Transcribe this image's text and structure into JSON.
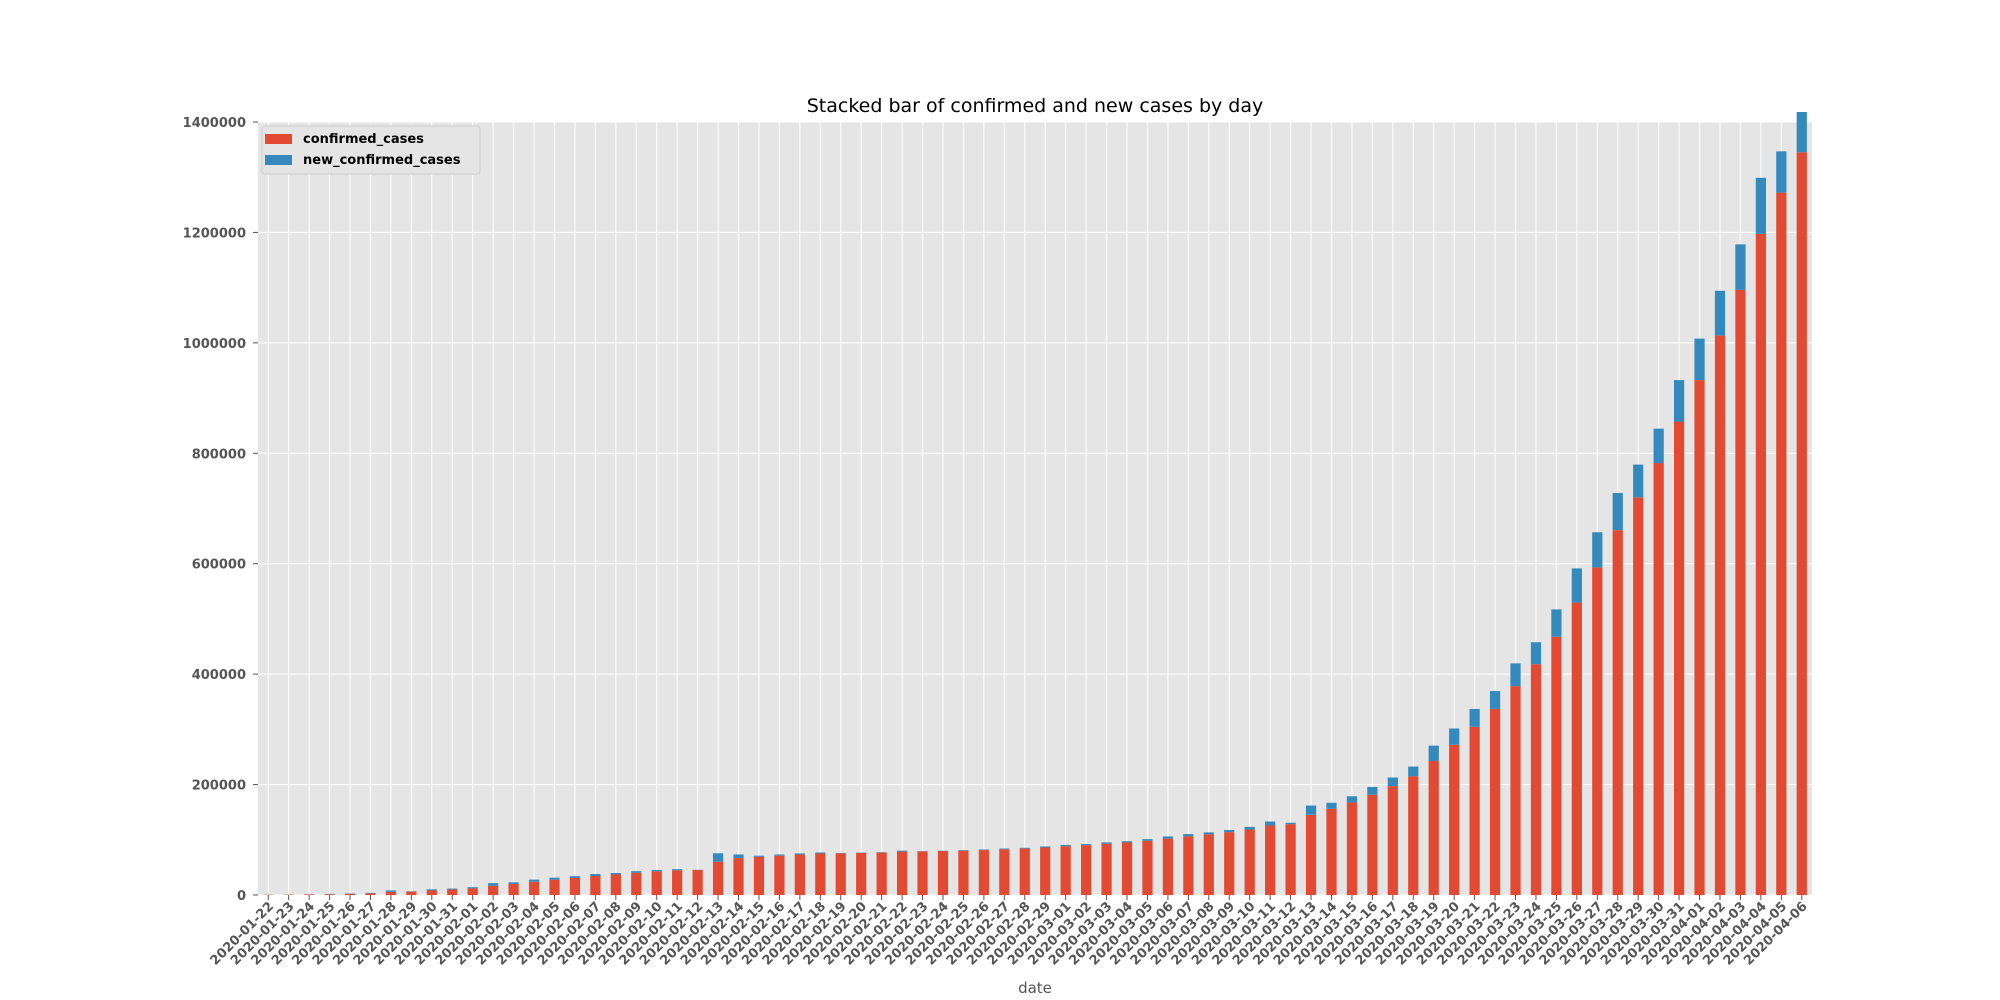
{
  "chart_data": {
    "type": "bar",
    "stacked": true,
    "title": "Stacked bar of confirmed and new cases by day",
    "xlabel": "date",
    "ylabel": "",
    "ylim": [
      0,
      1400000
    ],
    "yticks": [
      0,
      200000,
      400000,
      600000,
      800000,
      1000000,
      1200000,
      1400000
    ],
    "ytick_labels": [
      "0",
      "200000",
      "400000",
      "600000",
      "800000",
      "1000000",
      "1200000",
      "1400000"
    ],
    "grid": true,
    "legend_position": "top-left",
    "colors": {
      "confirmed_cases": "#E24A33",
      "new_confirmed_cases": "#348ABD"
    },
    "categories": [
      "2020-01-22",
      "2020-01-23",
      "2020-01-24",
      "2020-01-25",
      "2020-01-26",
      "2020-01-27",
      "2020-01-28",
      "2020-01-29",
      "2020-01-30",
      "2020-01-31",
      "2020-02-01",
      "2020-02-02",
      "2020-02-03",
      "2020-02-04",
      "2020-02-05",
      "2020-02-06",
      "2020-02-07",
      "2020-02-08",
      "2020-02-09",
      "2020-02-10",
      "2020-02-11",
      "2020-02-12",
      "2020-02-13",
      "2020-02-14",
      "2020-02-15",
      "2020-02-16",
      "2020-02-17",
      "2020-02-18",
      "2020-02-19",
      "2020-02-20",
      "2020-02-21",
      "2020-02-22",
      "2020-02-23",
      "2020-02-24",
      "2020-02-25",
      "2020-02-26",
      "2020-02-27",
      "2020-02-28",
      "2020-02-29",
      "2020-03-01",
      "2020-03-02",
      "2020-03-03",
      "2020-03-04",
      "2020-03-05",
      "2020-03-06",
      "2020-03-07",
      "2020-03-08",
      "2020-03-09",
      "2020-03-10",
      "2020-03-11",
      "2020-03-12",
      "2020-03-13",
      "2020-03-14",
      "2020-03-15",
      "2020-03-16",
      "2020-03-17",
      "2020-03-18",
      "2020-03-19",
      "2020-03-20",
      "2020-03-21",
      "2020-03-22",
      "2020-03-23",
      "2020-03-24",
      "2020-03-25",
      "2020-03-26",
      "2020-03-27",
      "2020-03-28",
      "2020-03-29",
      "2020-03-30",
      "2020-03-31",
      "2020-04-01",
      "2020-04-02",
      "2020-04-03",
      "2020-04-04",
      "2020-04-05",
      "2020-04-06"
    ],
    "series": [
      {
        "name": "confirmed_cases",
        "values": [
          555,
          653,
          941,
          1438,
          2118,
          2927,
          5578,
          6165,
          8235,
          9925,
          12038,
          16787,
          19881,
          23892,
          27636,
          30818,
          34392,
          37121,
          40151,
          42763,
          44803,
          45222,
          60370,
          66887,
          69032,
          71226,
          73260,
          75138,
          75641,
          76199,
          76843,
          78599,
          78985,
          79570,
          80415,
          81397,
          82756,
          84124,
          86013,
          88371,
          90309,
          92844,
          95124,
          98186,
          102136,
          106215,
          109807,
          113784,
          118582,
          125865,
          128343,
          145193,
          156097,
          167449,
          181546,
          197168,
          214915,
          242713,
          272167,
          304528,
          336953,
          378235,
          418045,
          467653,
          529591,
          593291,
          660706,
          720117,
          782365,
          857487,
          932605,
          1013466,
          1095917,
          1197405,
          1272115,
          1345101
        ]
      },
      {
        "name": "new_confirmed_cases",
        "values": [
          0,
          98,
          288,
          497,
          680,
          809,
          2651,
          587,
          2070,
          1690,
          2113,
          4749,
          3094,
          4011,
          3744,
          3182,
          3574,
          2729,
          3030,
          2612,
          2040,
          419,
          15148,
          6517,
          2145,
          2194,
          2034,
          1878,
          503,
          558,
          644,
          1756,
          386,
          585,
          845,
          982,
          1359,
          1368,
          1889,
          2358,
          1938,
          2535,
          2280,
          3062,
          3950,
          4079,
          3592,
          3977,
          4798,
          7283,
          2478,
          16850,
          10904,
          11352,
          14097,
          15622,
          17747,
          27798,
          29454,
          32361,
          32425,
          41282,
          39810,
          49608,
          61938,
          63700,
          67415,
          59411,
          62248,
          75122,
          75118,
          80861,
          82451,
          101488,
          74710,
          72986
        ]
      }
    ],
    "legend": [
      "confirmed_cases",
      "new_confirmed_cases"
    ]
  }
}
